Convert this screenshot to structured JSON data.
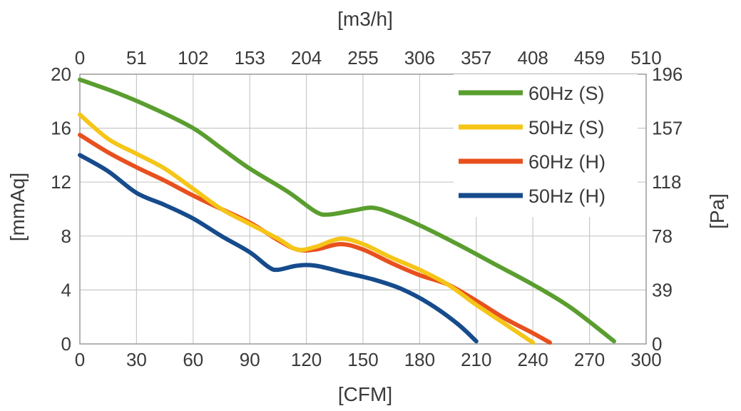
{
  "chart_data": {
    "type": "line",
    "x_bottom": {
      "label": "[CFM]",
      "range": [
        0,
        300
      ],
      "ticks": [
        "0",
        "30",
        "60",
        "90",
        "120",
        "150",
        "180",
        "210",
        "240",
        "270",
        "300"
      ]
    },
    "x_top": {
      "label": "[m3/h]",
      "ticks": [
        "0",
        "51",
        "102",
        "153",
        "204",
        "255",
        "306",
        "357",
        "408",
        "459",
        "510"
      ]
    },
    "y_left": {
      "label": "[mmAq]",
      "range": [
        0,
        20
      ],
      "ticks": [
        "0",
        "4",
        "8",
        "12",
        "16",
        "20"
      ]
    },
    "y_right": {
      "label": "[Pa]",
      "ticks": [
        "0",
        "39",
        "78",
        "118",
        "157",
        "196"
      ]
    },
    "grid": true,
    "legend_position": "top-right",
    "series": [
      {
        "name": "60Hz (S)",
        "color": "#5a9e2f",
        "points": [
          [
            0,
            19.6
          ],
          [
            20,
            18.6
          ],
          [
            40,
            17.4
          ],
          [
            60,
            16.0
          ],
          [
            75,
            14.5
          ],
          [
            90,
            13.0
          ],
          [
            110,
            11.3
          ],
          [
            125,
            9.8
          ],
          [
            132,
            9.6
          ],
          [
            145,
            9.9
          ],
          [
            155,
            10.1
          ],
          [
            165,
            9.7
          ],
          [
            180,
            8.8
          ],
          [
            200,
            7.4
          ],
          [
            220,
            5.9
          ],
          [
            240,
            4.4
          ],
          [
            260,
            2.7
          ],
          [
            283,
            0.2
          ]
        ]
      },
      {
        "name": "50Hz (S)",
        "color": "#f5c518",
        "points": [
          [
            0,
            17.0
          ],
          [
            15,
            15.2
          ],
          [
            30,
            14.1
          ],
          [
            45,
            13.0
          ],
          [
            60,
            11.5
          ],
          [
            75,
            10.0
          ],
          [
            90,
            8.9
          ],
          [
            105,
            7.8
          ],
          [
            115,
            7.0
          ],
          [
            125,
            7.2
          ],
          [
            138,
            7.8
          ],
          [
            150,
            7.4
          ],
          [
            165,
            6.4
          ],
          [
            180,
            5.5
          ],
          [
            195,
            4.4
          ],
          [
            210,
            2.9
          ],
          [
            225,
            1.5
          ],
          [
            240,
            0.1
          ]
        ]
      },
      {
        "name": "60Hz (H)",
        "color": "#e8501e",
        "points": [
          [
            0,
            15.5
          ],
          [
            15,
            14.2
          ],
          [
            30,
            13.1
          ],
          [
            45,
            12.1
          ],
          [
            60,
            11.0
          ],
          [
            75,
            10.0
          ],
          [
            90,
            9.0
          ],
          [
            105,
            7.7
          ],
          [
            115,
            7.0
          ],
          [
            125,
            7.0
          ],
          [
            138,
            7.4
          ],
          [
            150,
            7.0
          ],
          [
            165,
            6.0
          ],
          [
            180,
            5.1
          ],
          [
            195,
            4.4
          ],
          [
            210,
            3.2
          ],
          [
            225,
            1.9
          ],
          [
            240,
            0.8
          ],
          [
            249,
            0.1
          ]
        ]
      },
      {
        "name": "50Hz (H)",
        "color": "#164b8c",
        "points": [
          [
            0,
            14.0
          ],
          [
            15,
            12.8
          ],
          [
            30,
            11.2
          ],
          [
            45,
            10.3
          ],
          [
            60,
            9.3
          ],
          [
            75,
            8.0
          ],
          [
            90,
            6.8
          ],
          [
            100,
            5.7
          ],
          [
            105,
            5.5
          ],
          [
            115,
            5.8
          ],
          [
            125,
            5.8
          ],
          [
            140,
            5.3
          ],
          [
            155,
            4.8
          ],
          [
            170,
            4.1
          ],
          [
            185,
            3.0
          ],
          [
            200,
            1.5
          ],
          [
            210,
            0.2
          ]
        ]
      }
    ]
  }
}
